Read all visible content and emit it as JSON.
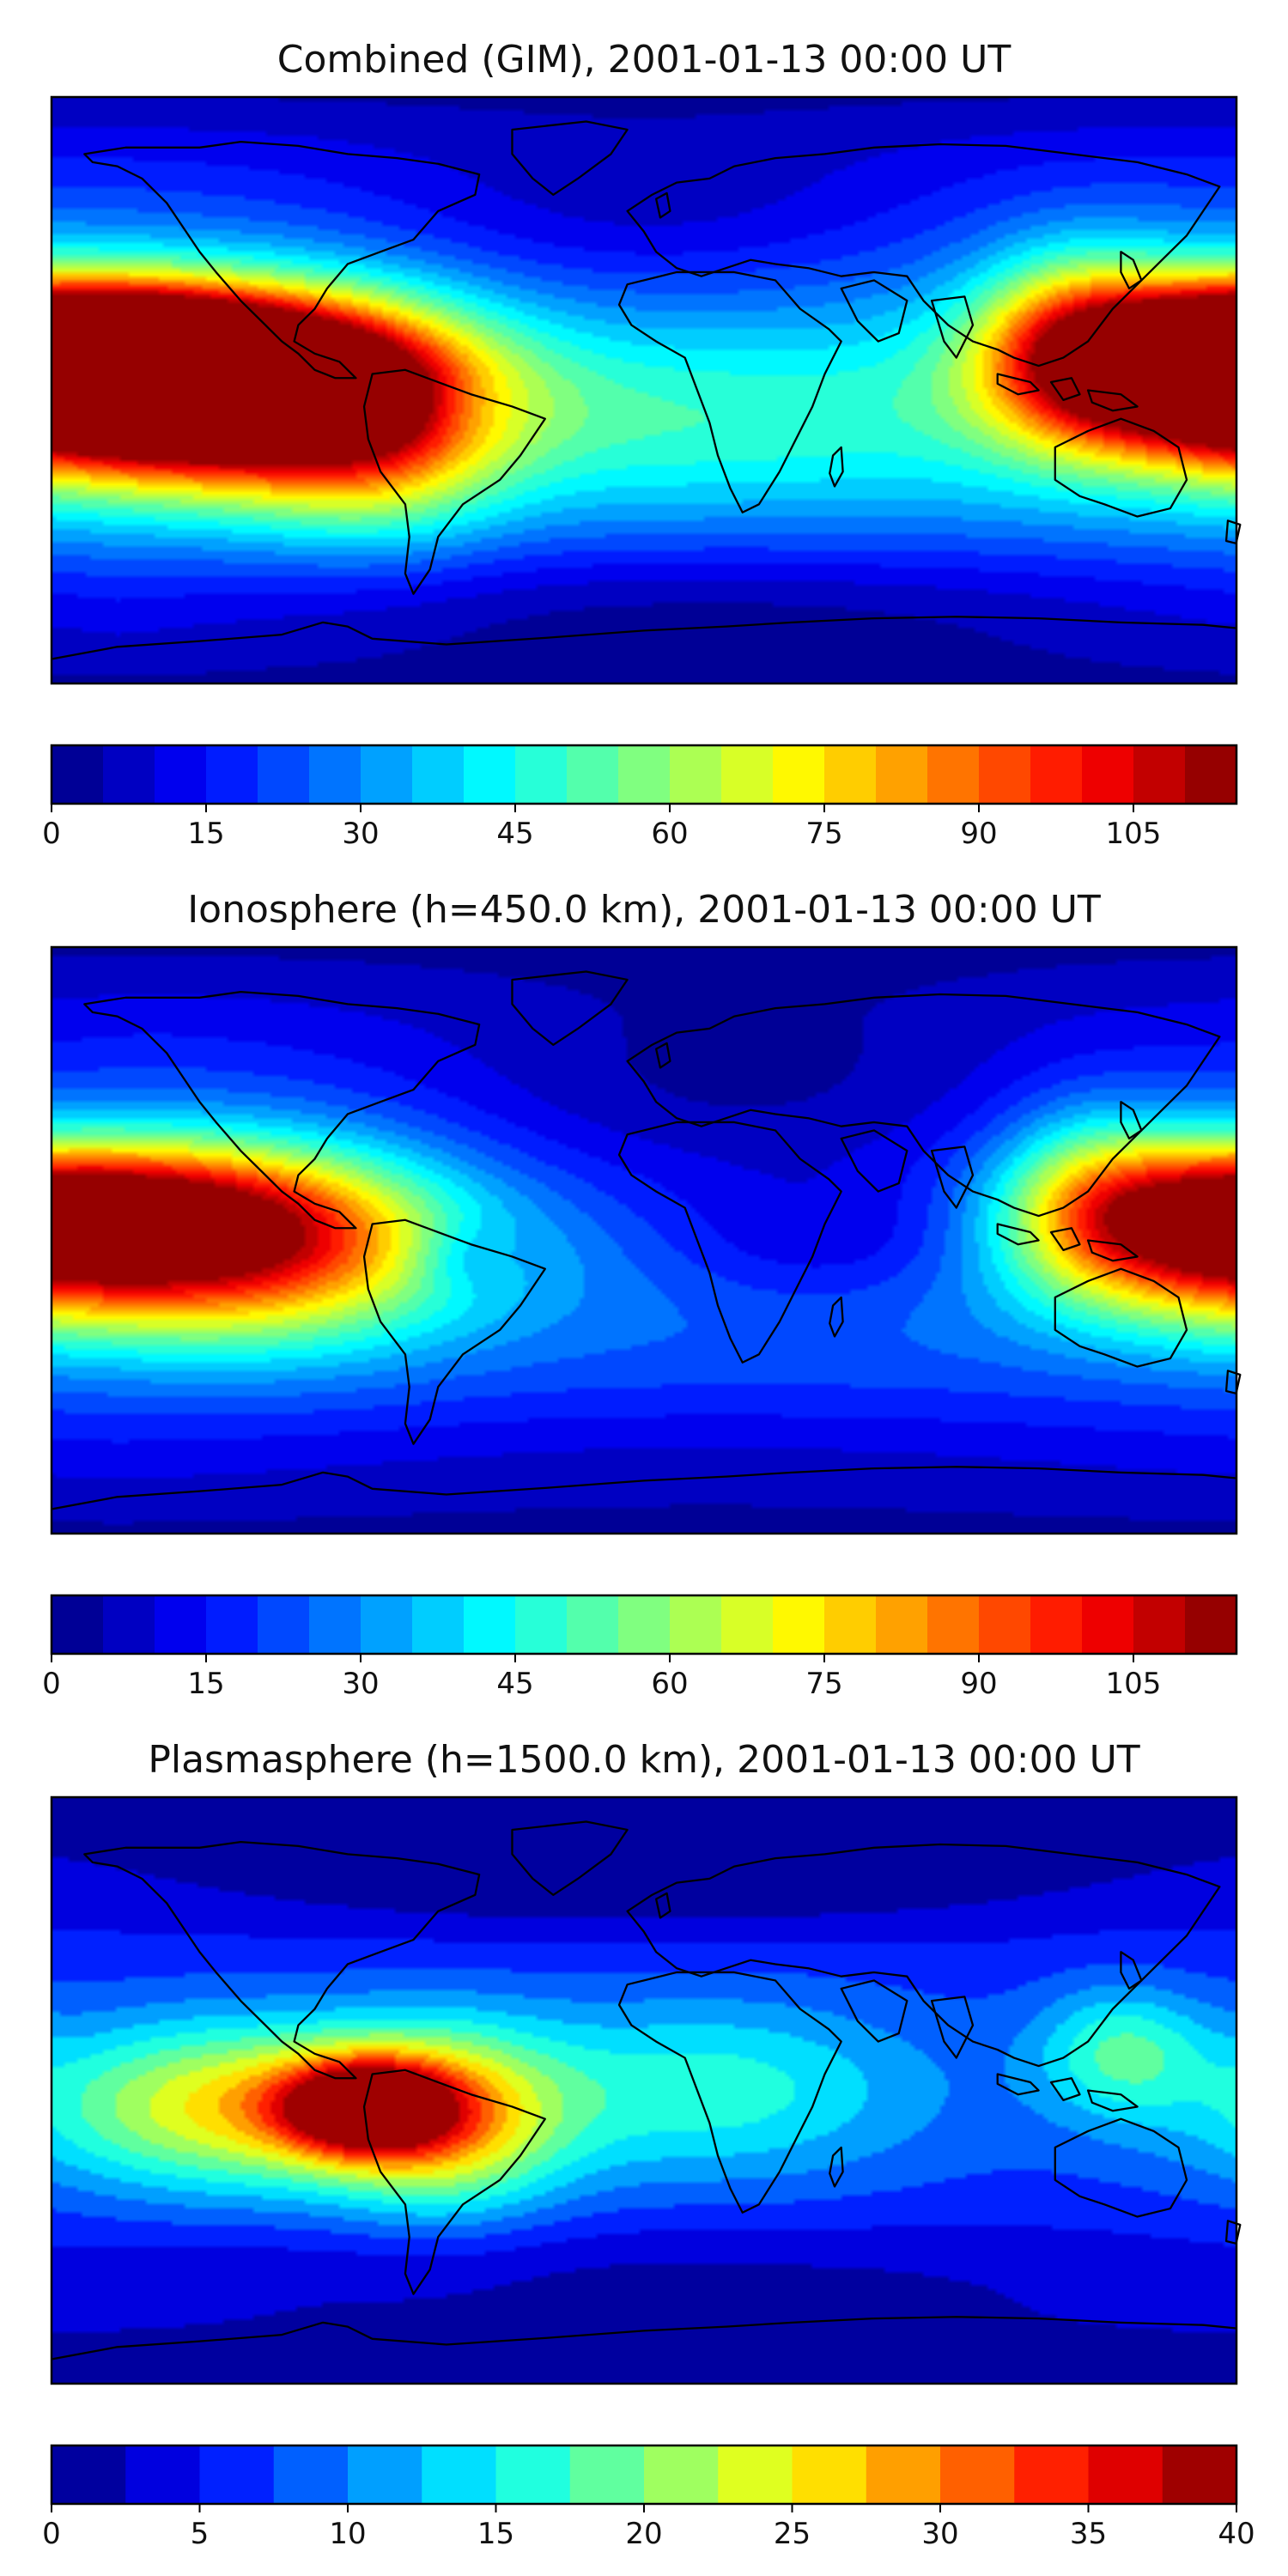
{
  "figure": {
    "description": "Three global TEC maps with colorbars"
  },
  "chart_data": [
    {
      "type": "heatmap",
      "title": "Combined (GIM), 2001-01-13 00:00 UT",
      "colormap": "jet",
      "colorbar": {
        "min": 0,
        "max": 115,
        "step": 5,
        "ticks": [
          0,
          15,
          30,
          45,
          60,
          75,
          90,
          105
        ]
      },
      "features": [
        {
          "lon": -165,
          "lat": 12,
          "value": 108,
          "sx": 40,
          "sy": 14
        },
        {
          "lon": -140,
          "lat": 5,
          "value": 100,
          "sx": 45,
          "sy": 15
        },
        {
          "lon": -150,
          "lat": -5,
          "value": 92,
          "sx": 55,
          "sy": 18
        },
        {
          "lon": -110,
          "lat": 0,
          "value": 80,
          "sx": 40,
          "sy": 22
        },
        {
          "lon": -80,
          "lat": -15,
          "value": 62,
          "sx": 25,
          "sy": 22
        },
        {
          "lon": -55,
          "lat": -5,
          "value": 28,
          "sx": 12,
          "sy": 8
        },
        {
          "lon": 165,
          "lat": 10,
          "value": 80,
          "sx": 35,
          "sy": 18
        },
        {
          "lon": 130,
          "lat": 15,
          "value": 70,
          "sx": 20,
          "sy": 20
        },
        {
          "lon": 20,
          "lat": -10,
          "value": 48,
          "sx": 60,
          "sy": 18
        },
        {
          "lon": 0,
          "lat": 50,
          "value": 18,
          "sx": 70,
          "sy": 20
        },
        {
          "lon": 20,
          "lat": -65,
          "value": 20,
          "sx": 120,
          "sy": 15
        }
      ],
      "base": 35
    },
    {
      "type": "heatmap",
      "title": "Ionosphere  (h=450.0 km), 2001-01-13 00:00 UT",
      "colormap": "jet",
      "colorbar": {
        "min": 0,
        "max": 115,
        "step": 5,
        "ticks": [
          0,
          15,
          30,
          45,
          60,
          75,
          90,
          105
        ]
      },
      "features": [
        {
          "lon": -160,
          "lat": 10,
          "value": 80,
          "sx": 45,
          "sy": 14
        },
        {
          "lon": -150,
          "lat": -5,
          "value": 76,
          "sx": 55,
          "sy": 18
        },
        {
          "lon": -110,
          "lat": 0,
          "value": 60,
          "sx": 40,
          "sy": 22
        },
        {
          "lon": -55,
          "lat": -5,
          "value": 15,
          "sx": 12,
          "sy": 8
        },
        {
          "lon": 170,
          "lat": 5,
          "value": 66,
          "sx": 30,
          "sy": 18
        },
        {
          "lon": 135,
          "lat": 15,
          "value": 55,
          "sx": 20,
          "sy": 20
        },
        {
          "lon": 30,
          "lat": 40,
          "value": 8,
          "sx": 80,
          "sy": 25
        },
        {
          "lon": 60,
          "lat": 0,
          "value": 12,
          "sx": 40,
          "sy": 15
        },
        {
          "lon": 20,
          "lat": -65,
          "value": 22,
          "sx": 120,
          "sy": 15
        }
      ],
      "base": 28
    },
    {
      "type": "heatmap",
      "title": "Plasmasphere (h=1500.0 km), 2001-01-13 00:00 UT",
      "colormap": "jet",
      "colorbar": {
        "min": 0,
        "max": 40,
        "step": 2.5,
        "ticks": [
          0,
          5,
          10,
          15,
          20,
          25,
          30,
          35,
          40
        ]
      },
      "features": [
        {
          "lon": -85,
          "lat": -5,
          "value": 32,
          "sx": 18,
          "sy": 10
        },
        {
          "lon": -120,
          "lat": -5,
          "value": 26,
          "sx": 45,
          "sy": 18
        },
        {
          "lon": -60,
          "lat": -10,
          "value": 22,
          "sx": 25,
          "sy": 20
        },
        {
          "lon": 20,
          "lat": 0,
          "value": 16,
          "sx": 45,
          "sy": 20
        },
        {
          "lon": 145,
          "lat": 12,
          "value": 17,
          "sx": 18,
          "sy": 14
        },
        {
          "lon": 0,
          "lat": 65,
          "value": 2,
          "sx": 90,
          "sy": 12
        },
        {
          "lon": 0,
          "lat": -55,
          "value": 4,
          "sx": 120,
          "sy": 12
        }
      ],
      "base": 7
    }
  ]
}
